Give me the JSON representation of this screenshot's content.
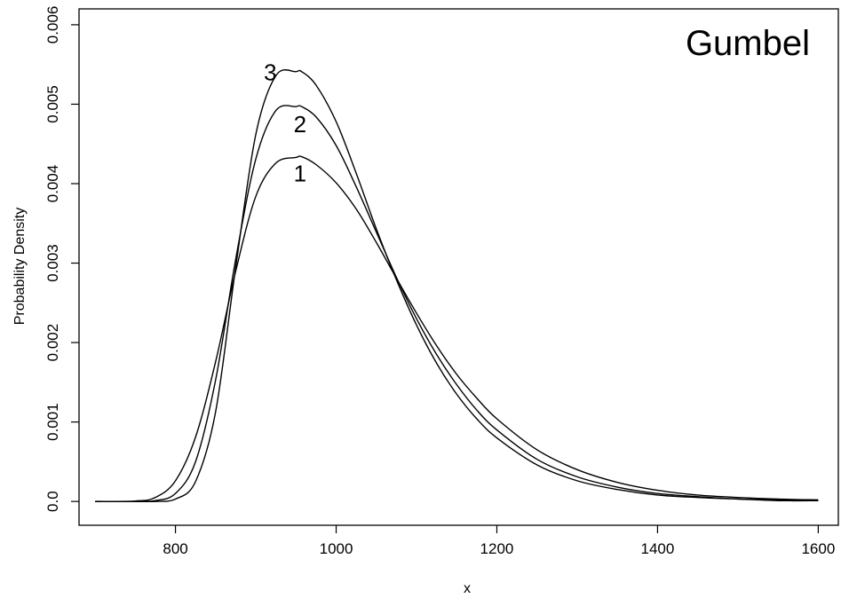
{
  "chart_data": {
    "type": "line",
    "title": "",
    "xlabel": "x",
    "ylabel": "Probability Density",
    "xlim": [
      680,
      1625
    ],
    "ylim": [
      -0.0003,
      0.0062
    ],
    "xticks": [
      800,
      1000,
      1200,
      1400,
      1600
    ],
    "xtick_labels": [
      "800",
      "1000",
      "1200",
      "1400",
      "1600"
    ],
    "yticks": [
      0.0,
      0.001,
      0.002,
      0.003,
      0.004,
      0.005,
      0.006
    ],
    "ytick_labels": [
      "0.0",
      "0.001",
      "0.002",
      "0.003",
      "0.004",
      "0.005",
      "0.006"
    ],
    "grid": false,
    "legend": "none",
    "annotation": "Gumbel",
    "line_color": "#000000",
    "series": [
      {
        "name": "1",
        "label": "1",
        "label_at": [
          955,
          0.00403
        ],
        "x": [
          700,
          750,
          775,
          800,
          825,
          850,
          875,
          900,
          925,
          950,
          957,
          975,
          1000,
          1025,
          1050,
          1075,
          1100,
          1125,
          1150,
          1175,
          1200,
          1250,
          1300,
          1350,
          1400,
          1450,
          1500,
          1550,
          1600
        ],
        "y": [
          0.0,
          5e-06,
          5e-05,
          0.00026,
          0.00081,
          0.00176,
          0.0029,
          0.00384,
          0.00426,
          0.00433,
          0.00434,
          0.00424,
          0.00401,
          0.00368,
          0.00326,
          0.00281,
          0.00237,
          0.00196,
          0.0016,
          0.0013,
          0.00104,
          0.00065,
          0.0004,
          0.00024,
          0.00014,
          8e-05,
          5e-05,
          3e-05,
          2e-05
        ]
      },
      {
        "name": "2",
        "label": "2",
        "label_at": [
          955,
          0.00465
        ],
        "x": [
          700,
          750,
          775,
          800,
          825,
          850,
          875,
          900,
          925,
          950,
          957,
          975,
          1000,
          1025,
          1050,
          1075,
          1100,
          1125,
          1150,
          1175,
          1200,
          1250,
          1300,
          1350,
          1400,
          1450,
          1500,
          1550,
          1600
        ],
        "y": [
          0.0,
          0.0,
          1e-05,
          0.0001,
          0.0005,
          0.00153,
          0.00305,
          0.00431,
          0.00492,
          0.00497,
          0.00497,
          0.00484,
          0.00448,
          0.00396,
          0.00339,
          0.00282,
          0.0023,
          0.00185,
          0.00147,
          0.00115,
          0.0009,
          0.00053,
          0.00031,
          0.00018,
          0.0001,
          6e-05,
          3e-05,
          2e-05,
          1e-05
        ]
      },
      {
        "name": "3",
        "label": "3",
        "label_at": [
          918,
          0.0053
        ],
        "x": [
          700,
          750,
          775,
          800,
          825,
          850,
          875,
          900,
          925,
          950,
          957,
          975,
          1000,
          1025,
          1050,
          1075,
          1100,
          1125,
          1150,
          1175,
          1200,
          1250,
          1300,
          1350,
          1400,
          1450,
          1500,
          1550,
          1600
        ],
        "y": [
          0.0,
          0.0,
          0.0,
          3e-05,
          0.00025,
          0.00113,
          0.00295,
          0.00462,
          0.00536,
          0.00541,
          0.00541,
          0.00524,
          0.00478,
          0.00413,
          0.00343,
          0.00279,
          0.00222,
          0.00174,
          0.00135,
          0.00104,
          0.0008,
          0.00046,
          0.00026,
          0.00015,
          8e-05,
          5e-05,
          3e-05,
          1e-05,
          1e-05
        ]
      }
    ]
  }
}
